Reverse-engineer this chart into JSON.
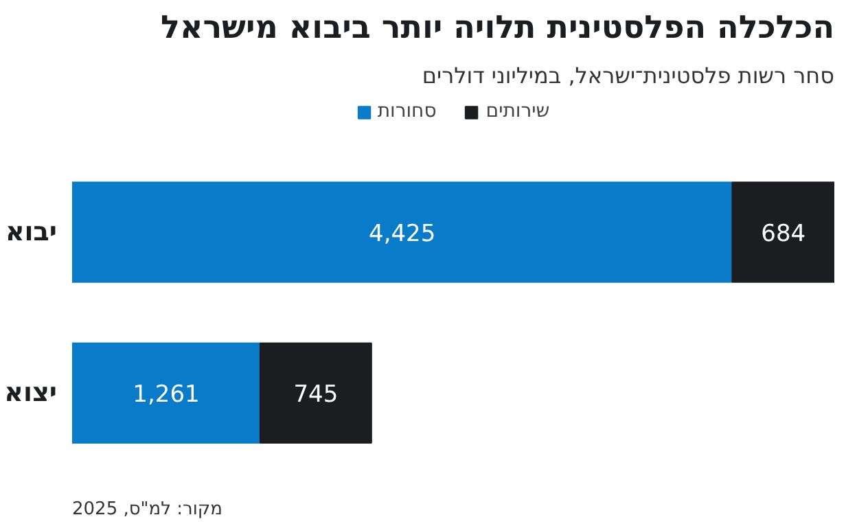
{
  "chart_data": {
    "type": "bar",
    "orientation": "horizontal",
    "stacked": true,
    "title": "הכלכלה הפלסטינית תלויה יותר ביבוא מישראל",
    "subtitle": "סחר רשות פלסטינית־ישראל, במיליוני דולרים",
    "categories": [
      "יבוא",
      "יצוא"
    ],
    "series": [
      {
        "name": "סחורות",
        "color": "#0a7bc8",
        "values": [
          4425,
          1261
        ],
        "value_labels": [
          "4,425",
          "1,261"
        ]
      },
      {
        "name": "שירותים",
        "color": "#1c1d21",
        "values": [
          684,
          745
        ],
        "value_labels": [
          "684",
          "745"
        ]
      }
    ],
    "legend": "top",
    "grid": false,
    "annotations": [
      "מקור: למ\"ס, 2025"
    ]
  }
}
